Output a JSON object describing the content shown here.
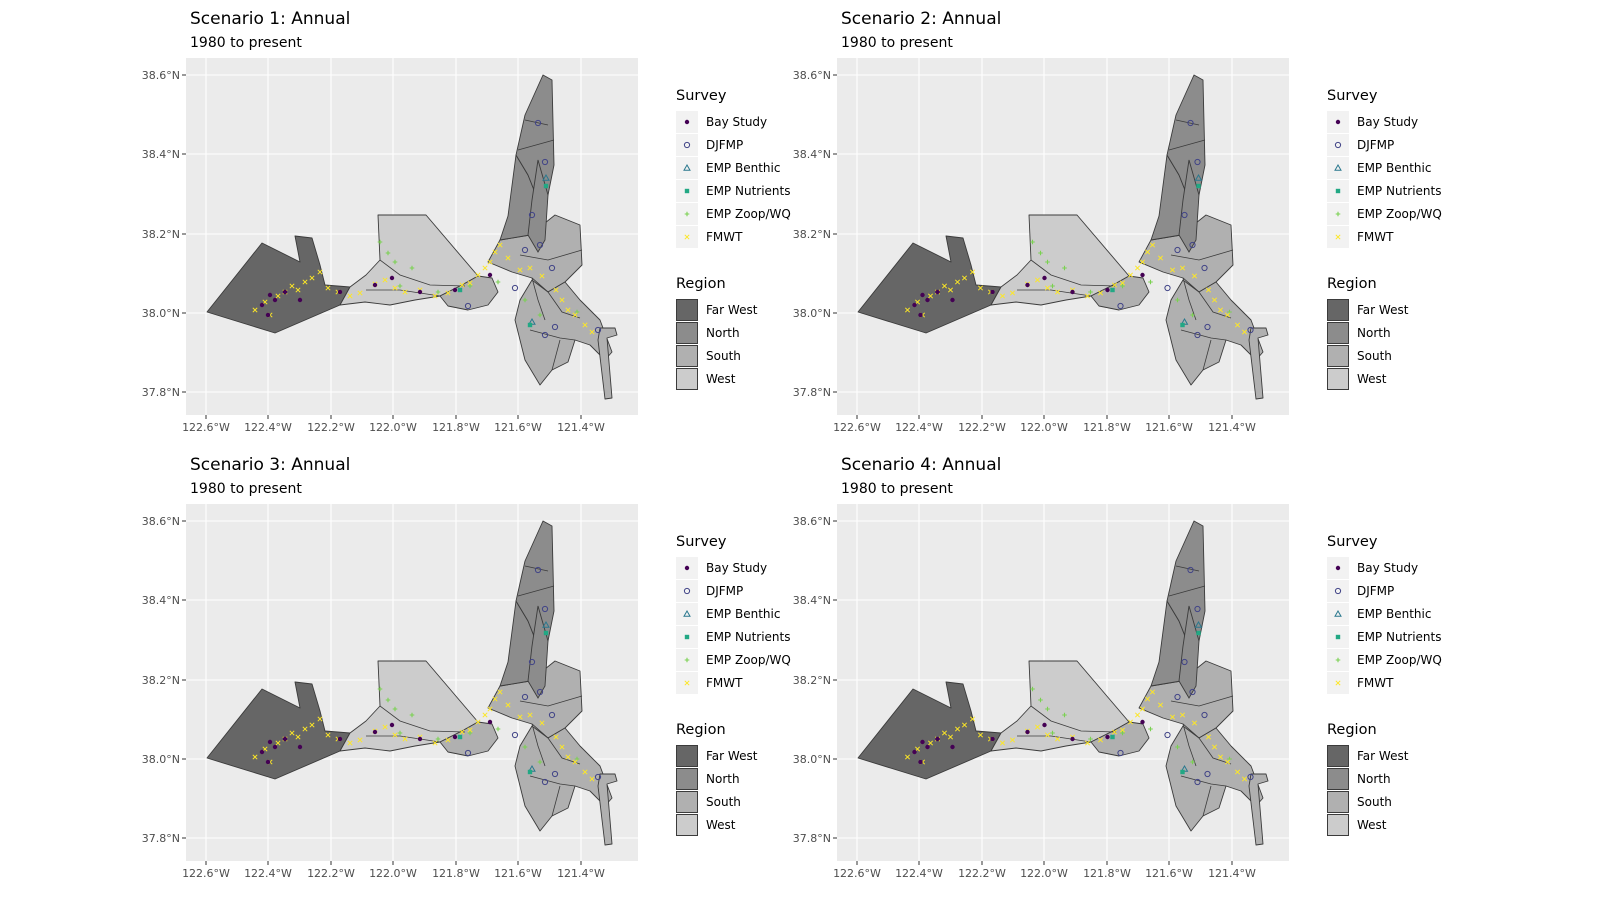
{
  "panels": [
    {
      "title": "Scenario 1: Annual",
      "subtitle": "1980 to present"
    },
    {
      "title": "Scenario 2: Annual",
      "subtitle": "1980 to present"
    },
    {
      "title": "Scenario 3: Annual",
      "subtitle": "1980 to present"
    },
    {
      "title": "Scenario 4: Annual",
      "subtitle": "1980 to present"
    }
  ],
  "axes": {
    "lon_ticks": [
      "122.6°W",
      "122.4°W",
      "122.2°W",
      "122.0°W",
      "121.8°W",
      "121.6°W",
      "121.4°W"
    ],
    "lat_ticks": [
      "38.6°N",
      "38.4°N",
      "38.2°N",
      "38.0°N",
      "37.8°N"
    ]
  },
  "legend": {
    "survey_title": "Survey",
    "surveys": [
      {
        "name": "Bay Study",
        "shape": "dot",
        "color": "#440154"
      },
      {
        "name": "DJFMP",
        "shape": "circle",
        "color": "#414487"
      },
      {
        "name": "EMP Benthic",
        "shape": "triangle",
        "color": "#2A788E"
      },
      {
        "name": "EMP Nutrients",
        "shape": "square",
        "color": "#22A884"
      },
      {
        "name": "EMP Zoop/WQ",
        "shape": "plus",
        "color": "#7AD151"
      },
      {
        "name": "FMWT",
        "shape": "x",
        "color": "#FDE725"
      }
    ],
    "region_title": "Region",
    "regions": [
      {
        "name": "Far West",
        "color": "#666666"
      },
      {
        "name": "North",
        "color": "#8c8c8c"
      },
      {
        "name": "South",
        "color": "#b0b0b0"
      },
      {
        "name": "West",
        "color": "#cccccc"
      }
    ]
  }
}
